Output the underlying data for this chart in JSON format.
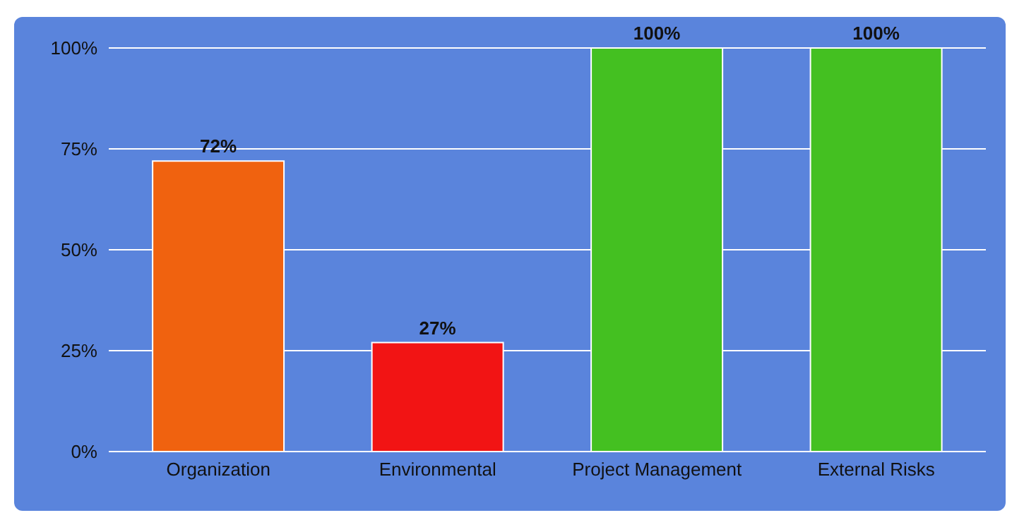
{
  "chart_data": {
    "type": "bar",
    "categories": [
      "Organization",
      "Environmental",
      "Project Management",
      "External Risks"
    ],
    "values": [
      72,
      27,
      100,
      100
    ],
    "colors": [
      "#f0620f",
      "#f21414",
      "#44c021",
      "#44c021"
    ],
    "value_labels": [
      "72%",
      "27%",
      "100%",
      "100%"
    ],
    "ylim": [
      0,
      100
    ],
    "yticks": [
      {
        "value": 0,
        "label": "0%"
      },
      {
        "value": 25,
        "label": "25%"
      },
      {
        "value": 50,
        "label": "50%"
      },
      {
        "value": 75,
        "label": "75%"
      },
      {
        "value": 100,
        "label": "100%"
      }
    ],
    "grid": "y",
    "legend": false
  }
}
